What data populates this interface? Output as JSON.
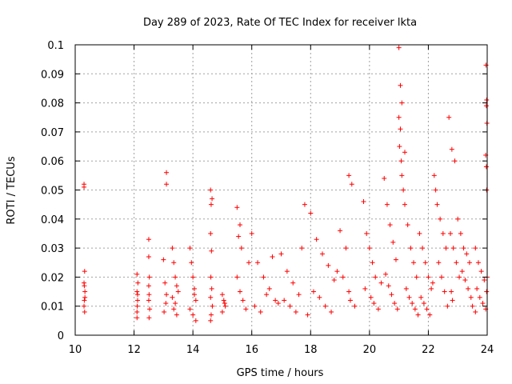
{
  "chart_data": {
    "type": "scatter",
    "title": "Day 289 of 2023, Rate Of TEC Index for receiver lkta",
    "xlabel": "GPS time / hours",
    "ylabel": "ROTI / TECUs",
    "xlim": [
      10,
      24
    ],
    "ylim": [
      0,
      0.1
    ],
    "grid": true,
    "marker": "plus",
    "color": "#ff0000",
    "x_ticks": [
      10,
      12,
      14,
      16,
      18,
      20,
      22,
      24
    ],
    "x_tick_labels": [
      "10",
      "12",
      "14",
      "16",
      "18",
      "20",
      "22",
      "24"
    ],
    "y_ticks": [
      0,
      0.01,
      0.02,
      0.03,
      0.04,
      0.05,
      0.06,
      0.07,
      0.08,
      0.09,
      0.1
    ],
    "y_tick_labels": [
      "0",
      "0.01",
      "0.02",
      "0.03",
      "0.04",
      "0.05",
      "0.06",
      "0.07",
      "0.08",
      "0.09",
      "0.1"
    ],
    "series": [
      {
        "name": "ROTI",
        "x": [
          10.3,
          10.3,
          10.32,
          10.3,
          10.33,
          10.31,
          10.3,
          10.32,
          10.31,
          10.33,
          12.1,
          12.1,
          12.12,
          12.11,
          12.1,
          12.13,
          12.1,
          12.12,
          12.5,
          12.5,
          12.52,
          12.51,
          12.5,
          12.53,
          12.51,
          12.5,
          13.0,
          13.1,
          13.1,
          13.05,
          13.1,
          13.08,
          13.02,
          13.3,
          13.35,
          13.4,
          13.45,
          13.3,
          13.4,
          13.35,
          13.45,
          13.5,
          13.9,
          13.95,
          14.0,
          14.05,
          14.1,
          13.9,
          14.0,
          14.1,
          14.05,
          14.6,
          14.65,
          14.62,
          14.6,
          14.63,
          14.61,
          14.64,
          14.6,
          14.66,
          14.62,
          14.6,
          15.0,
          15.05,
          15.1,
          15.0,
          15.08,
          15.5,
          15.6,
          15.55,
          15.65,
          15.5,
          15.6,
          15.7,
          15.8,
          15.9,
          16.0,
          16.2,
          16.4,
          16.6,
          16.8,
          16.1,
          16.3,
          16.5,
          16.7,
          16.9,
          17.0,
          17.2,
          17.4,
          17.6,
          17.1,
          17.3,
          17.5,
          17.8,
          17.7,
          17.9,
          18.0,
          18.2,
          18.4,
          18.6,
          18.8,
          18.1,
          18.3,
          18.5,
          18.7,
          18.9,
          19.0,
          19.2,
          19.3,
          19.4,
          19.1,
          19.3,
          19.35,
          19.5,
          19.8,
          19.9,
          20.0,
          20.1,
          20.2,
          19.85,
          20.05,
          20.15,
          20.3,
          20.4,
          20.5,
          20.6,
          20.7,
          20.8,
          20.9,
          20.55,
          20.65,
          20.75,
          20.85,
          20.95,
          21.0,
          21.05,
          21.1,
          21.0,
          21.05,
          21.02,
          21.08,
          21.1,
          21.15,
          21.2,
          21.2,
          21.3,
          21.4,
          21.5,
          21.6,
          21.25,
          21.35,
          21.45,
          21.55,
          21.65,
          21.7,
          21.8,
          21.9,
          22.0,
          22.1,
          21.75,
          21.85,
          21.95,
          22.05,
          22.15,
          22.2,
          22.25,
          22.3,
          22.4,
          22.5,
          22.6,
          22.35,
          22.45,
          22.55,
          22.65,
          22.7,
          22.8,
          22.9,
          23.0,
          22.75,
          22.85,
          22.95,
          23.05,
          22.78,
          22.82,
          23.1,
          23.2,
          23.3,
          23.4,
          23.15,
          23.25,
          23.35,
          23.45,
          23.5,
          23.6,
          23.6,
          23.7,
          23.8,
          23.9,
          23.65,
          23.75,
          23.85,
          23.95,
          24.0,
          23.98,
          23.96,
          23.98,
          23.97,
          23.99,
          23.95,
          23.97,
          23.98
        ],
        "y": [
          0.051,
          0.052,
          0.022,
          0.018,
          0.015,
          0.012,
          0.01,
          0.008,
          0.017,
          0.013,
          0.021,
          0.015,
          0.012,
          0.01,
          0.008,
          0.018,
          0.006,
          0.014,
          0.033,
          0.027,
          0.02,
          0.014,
          0.012,
          0.009,
          0.006,
          0.017,
          0.026,
          0.056,
          0.052,
          0.018,
          0.014,
          0.011,
          0.008,
          0.03,
          0.025,
          0.02,
          0.017,
          0.013,
          0.011,
          0.009,
          0.007,
          0.015,
          0.03,
          0.025,
          0.02,
          0.016,
          0.012,
          0.009,
          0.007,
          0.005,
          0.014,
          0.05,
          0.047,
          0.045,
          0.035,
          0.029,
          0.02,
          0.016,
          0.013,
          0.01,
          0.007,
          0.005,
          0.014,
          0.012,
          0.01,
          0.008,
          0.011,
          0.044,
          0.038,
          0.034,
          0.03,
          0.02,
          0.015,
          0.012,
          0.009,
          0.025,
          0.035,
          0.025,
          0.02,
          0.016,
          0.012,
          0.01,
          0.008,
          0.014,
          0.027,
          0.011,
          0.028,
          0.022,
          0.018,
          0.014,
          0.012,
          0.01,
          0.008,
          0.045,
          0.03,
          0.007,
          0.042,
          0.033,
          0.028,
          0.024,
          0.019,
          0.015,
          0.013,
          0.01,
          0.008,
          0.022,
          0.036,
          0.03,
          0.055,
          0.052,
          0.02,
          0.015,
          0.012,
          0.01,
          0.046,
          0.035,
          0.03,
          0.025,
          0.02,
          0.016,
          0.013,
          0.011,
          0.009,
          0.018,
          0.054,
          0.045,
          0.038,
          0.032,
          0.026,
          0.021,
          0.017,
          0.014,
          0.011,
          0.009,
          0.099,
          0.086,
          0.08,
          0.075,
          0.071,
          0.065,
          0.06,
          0.055,
          0.05,
          0.063,
          0.045,
          0.038,
          0.03,
          0.025,
          0.02,
          0.016,
          0.013,
          0.011,
          0.009,
          0.007,
          0.035,
          0.03,
          0.025,
          0.02,
          0.016,
          0.013,
          0.011,
          0.009,
          0.007,
          0.018,
          0.055,
          0.05,
          0.045,
          0.04,
          0.035,
          0.03,
          0.025,
          0.02,
          0.015,
          0.01,
          0.075,
          0.064,
          0.06,
          0.04,
          0.035,
          0.03,
          0.025,
          0.02,
          0.015,
          0.012,
          0.035,
          0.03,
          0.028,
          0.025,
          0.022,
          0.019,
          0.016,
          0.013,
          0.01,
          0.008,
          0.03,
          0.025,
          0.022,
          0.019,
          0.016,
          0.013,
          0.011,
          0.009,
          0.02,
          0.015,
          0.093,
          0.081,
          0.079,
          0.073,
          0.062,
          0.058,
          0.05
        ]
      }
    ]
  }
}
